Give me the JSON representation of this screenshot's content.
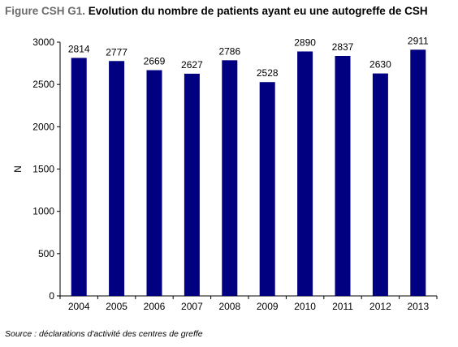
{
  "header": {
    "prefix": "Figure CSH G1.",
    "title": "Evolution du nombre de patients ayant eu une autogreffe de CSH"
  },
  "footer": {
    "source": "Source : déclarations d'activité des centres de greffe"
  },
  "chart_data": {
    "type": "bar",
    "categories": [
      "2004",
      "2005",
      "2006",
      "2007",
      "2008",
      "2009",
      "2010",
      "2011",
      "2012",
      "2013"
    ],
    "values": [
      2814,
      2777,
      2669,
      2627,
      2786,
      2528,
      2890,
      2837,
      2630,
      2911
    ],
    "data_labels": [
      "2814",
      "2777",
      "2669",
      "2627",
      "2786",
      "2528",
      "2890",
      "2837",
      "2630",
      "2911"
    ],
    "title": "Evolution du nombre de patients ayant eu une autogreffe de CSH",
    "xlabel": "",
    "ylabel": "N",
    "ylim": [
      0,
      3000
    ],
    "yticks": [
      0,
      500,
      1000,
      1500,
      2000,
      2500,
      3000
    ],
    "grid": false,
    "legend": "none",
    "bar_color": "#000080"
  }
}
